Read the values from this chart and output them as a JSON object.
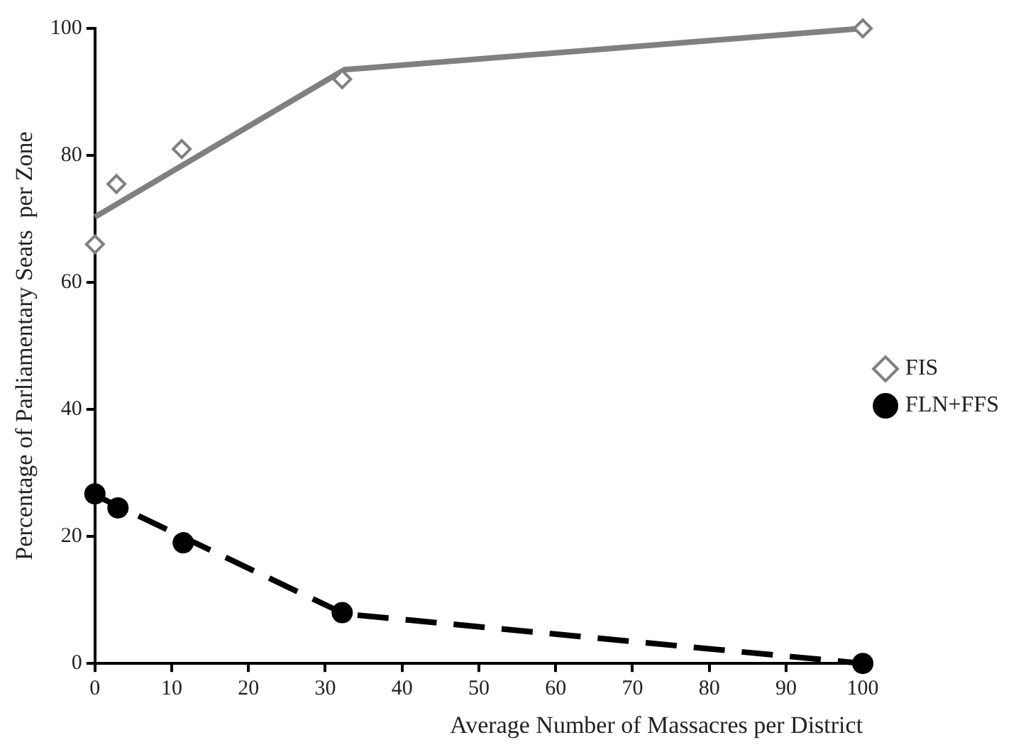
{
  "chart_data": {
    "type": "scatter",
    "xlabel": "Average Number of Massacres per District",
    "ylabel": "Percentage of Parliamentary Seats  per Zone",
    "xlim": [
      0,
      100
    ],
    "xticks": [
      0,
      10,
      20,
      30,
      40,
      50,
      60,
      70,
      80,
      90,
      100
    ],
    "ylim": [
      0,
      100
    ],
    "yticks": [
      0,
      20,
      40,
      60,
      80,
      100
    ],
    "grid": false,
    "legend": "right",
    "series": [
      {
        "name": "FIS",
        "marker": "diamond",
        "color": "#808080",
        "x": [
          0,
          2.8,
          11.3,
          32.2,
          100
        ],
        "values": [
          66,
          75.5,
          81,
          92,
          100
        ]
      },
      {
        "name": "FLN+FFS",
        "marker": "circle",
        "color": "#000000",
        "x": [
          0,
          3,
          11.5,
          32.2,
          100
        ],
        "values": [
          26.7,
          24.5,
          19,
          8,
          0
        ]
      },
      {
        "type": "line",
        "marker": "none",
        "line_style": "solid",
        "color": "#808080",
        "x": [
          0,
          32.5,
          100
        ],
        "values": [
          70.3,
          93.5,
          100
        ]
      },
      {
        "type": "line",
        "marker": "none",
        "line_style": "dashed",
        "color": "#000000",
        "x": [
          0,
          32.5,
          100
        ],
        "values": [
          26.5,
          7.8,
          0
        ]
      }
    ]
  }
}
